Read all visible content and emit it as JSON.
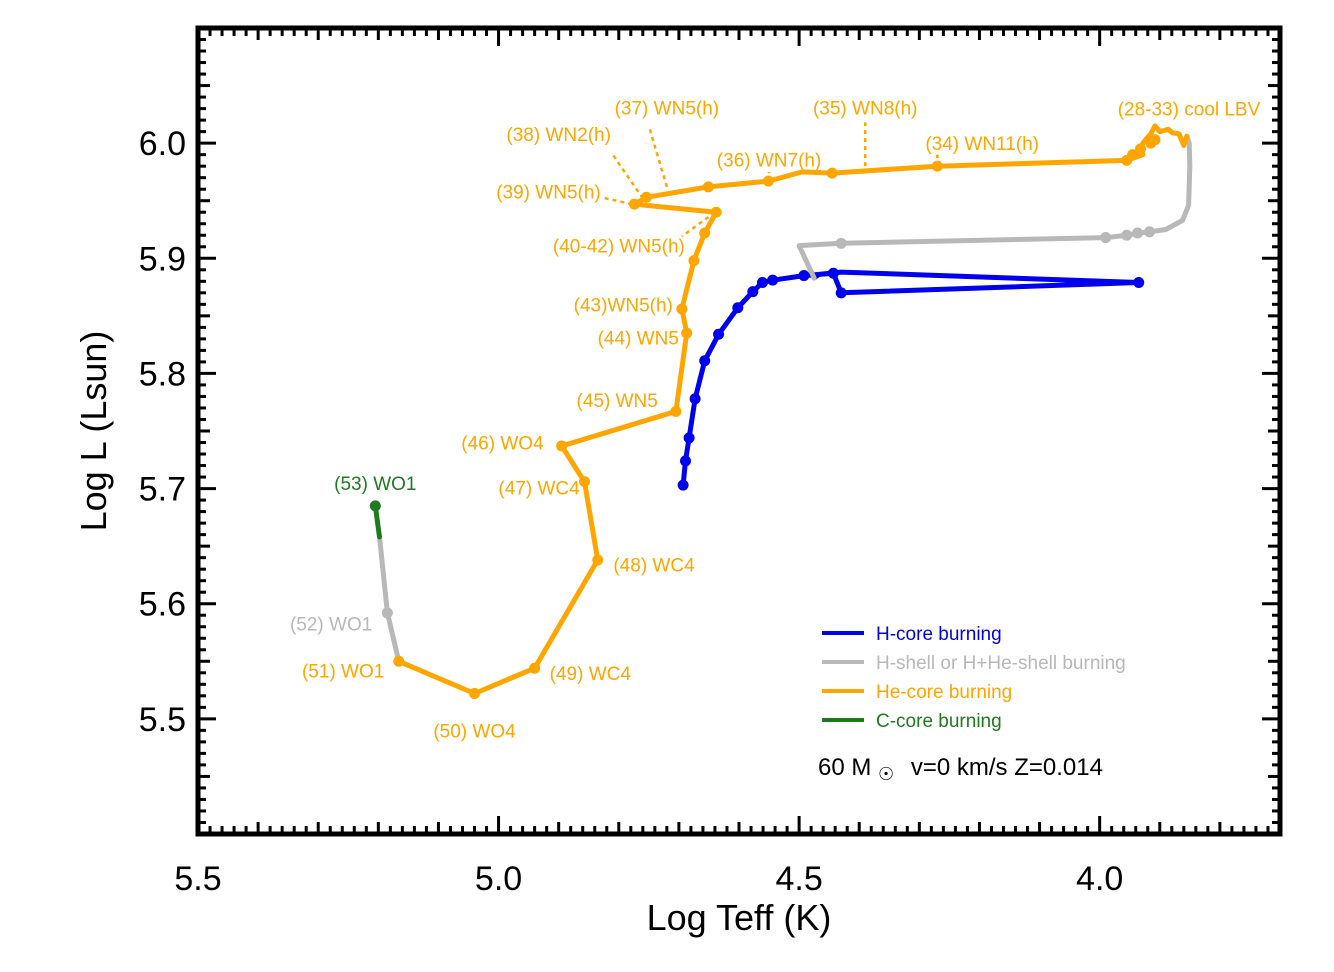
{
  "chart_data": {
    "type": "line",
    "xlabel": "Log Teff (K)",
    "ylabel": "Log L (Lsun)",
    "xlim": [
      5.5,
      3.7
    ],
    "ylim": [
      5.4,
      6.1
    ],
    "x_ticks": [
      "5.5",
      "5.0",
      "4.5",
      "4.0"
    ],
    "y_ticks": [
      "5.5",
      "5.6",
      "5.7",
      "5.8",
      "5.9",
      "6.0"
    ],
    "colors": {
      "h_core": "#0000ee",
      "h_shell": "#b8b8b8",
      "he_core": "#ffa500",
      "c_core": "#1e7a1e"
    },
    "series": [
      {
        "name": "H-core burning",
        "color_key": "h_core",
        "points": [
          [
            4.693,
            5.703
          ],
          [
            4.689,
            5.724
          ],
          [
            4.683,
            5.744
          ],
          [
            4.673,
            5.778
          ],
          [
            4.657,
            5.811
          ],
          [
            4.634,
            5.834
          ],
          [
            4.602,
            5.857
          ],
          [
            4.577,
            5.871
          ],
          [
            4.561,
            5.879
          ],
          [
            4.544,
            5.881
          ],
          [
            4.492,
            5.885
          ],
          [
            4.443,
            5.887
          ],
          [
            4.43,
            5.87
          ],
          [
            3.935,
            5.879
          ],
          [
            4.43,
            5.888
          ],
          [
            4.467,
            5.886
          ],
          [
            4.475,
            5.883
          ]
        ]
      },
      {
        "name": "H-shell or H+He-shell burning",
        "color_key": "h_shell",
        "points": [
          [
            4.475,
            5.883
          ],
          [
            4.5,
            5.911
          ],
          [
            4.43,
            5.913
          ],
          [
            3.99,
            5.918
          ],
          [
            3.955,
            5.92
          ],
          [
            3.937,
            5.922
          ],
          [
            3.917,
            5.923
          ],
          [
            3.89,
            5.925
          ],
          [
            3.862,
            5.933
          ],
          [
            3.852,
            5.946
          ],
          [
            3.85,
            5.98
          ],
          [
            3.851,
            6.0
          ],
          [
            3.855,
            6.006
          ]
        ]
      },
      {
        "name": "He-core burning",
        "color_key": "he_core",
        "points": [
          [
            3.855,
            6.006
          ],
          [
            3.86,
            5.998
          ],
          [
            3.868,
            6.008
          ],
          [
            3.879,
            6.009
          ],
          [
            3.886,
            6.012
          ],
          [
            3.9,
            6.01
          ],
          [
            3.908,
            6.015
          ],
          [
            3.915,
            6.008
          ],
          [
            3.922,
            6.004
          ],
          [
            3.928,
            6.0
          ],
          [
            3.932,
            5.995
          ],
          [
            3.928,
            5.99
          ],
          [
            3.955,
            5.985
          ],
          [
            4.27,
            5.98
          ],
          [
            4.445,
            5.974
          ],
          [
            4.495,
            5.975
          ],
          [
            4.551,
            5.967
          ],
          [
            4.651,
            5.962
          ],
          [
            4.754,
            5.953
          ],
          [
            4.774,
            5.947
          ],
          [
            4.638,
            5.94
          ],
          [
            4.657,
            5.922
          ],
          [
            4.675,
            5.898
          ],
          [
            4.695,
            5.856
          ],
          [
            4.687,
            5.835
          ],
          [
            4.705,
            5.767
          ],
          [
            4.895,
            5.737
          ],
          [
            4.857,
            5.706
          ],
          [
            4.835,
            5.638
          ],
          [
            4.94,
            5.544
          ],
          [
            5.04,
            5.522
          ],
          [
            5.166,
            5.55
          ]
        ]
      },
      {
        "name": "H-shell or H+He-shell burning",
        "color_key": "h_shell",
        "points": [
          [
            5.166,
            5.55
          ],
          [
            5.185,
            5.592
          ],
          [
            5.198,
            5.658
          ]
        ]
      },
      {
        "name": "C-core burning",
        "color_key": "c_core",
        "points": [
          [
            5.198,
            5.658
          ],
          [
            5.205,
            5.685
          ]
        ]
      }
    ],
    "markers": [
      {
        "color_key": "h_core",
        "points": [
          [
            4.693,
            5.703
          ],
          [
            4.689,
            5.724
          ],
          [
            4.683,
            5.744
          ],
          [
            4.673,
            5.778
          ],
          [
            4.657,
            5.811
          ],
          [
            4.634,
            5.834
          ],
          [
            4.602,
            5.857
          ],
          [
            4.577,
            5.871
          ],
          [
            4.561,
            5.879
          ],
          [
            4.544,
            5.881
          ],
          [
            4.492,
            5.885
          ],
          [
            4.443,
            5.887
          ],
          [
            4.43,
            5.87
          ],
          [
            3.935,
            5.879
          ]
        ]
      },
      {
        "color_key": "h_shell",
        "points": [
          [
            4.43,
            5.913
          ],
          [
            3.99,
            5.918
          ],
          [
            3.955,
            5.92
          ],
          [
            3.937,
            5.922
          ],
          [
            3.917,
            5.923
          ],
          [
            5.185,
            5.592
          ]
        ]
      },
      {
        "color_key": "he_core",
        "points": [
          [
            3.955,
            5.985
          ],
          [
            3.945,
            5.99
          ],
          [
            3.932,
            5.995
          ],
          [
            3.915,
            6.0
          ],
          [
            3.908,
            6.003
          ],
          [
            4.27,
            5.98
          ],
          [
            4.445,
            5.974
          ],
          [
            4.551,
            5.967
          ],
          [
            4.651,
            5.962
          ],
          [
            4.754,
            5.953
          ],
          [
            4.774,
            5.947
          ],
          [
            4.638,
            5.94
          ],
          [
            4.657,
            5.922
          ],
          [
            4.675,
            5.898
          ],
          [
            4.695,
            5.856
          ],
          [
            4.687,
            5.835
          ],
          [
            4.705,
            5.767
          ],
          [
            4.895,
            5.737
          ],
          [
            4.857,
            5.706
          ],
          [
            4.835,
            5.638
          ],
          [
            4.94,
            5.544
          ],
          [
            5.04,
            5.522
          ],
          [
            5.166,
            5.55
          ]
        ]
      },
      {
        "color_key": "c_core",
        "points": [
          [
            5.205,
            5.685
          ]
        ]
      }
    ],
    "annotations": [
      {
        "text": "(28-33) cool LBV",
        "color_key": "he_core",
        "x": 3.97,
        "y": 6.03,
        "anchor": "start"
      },
      {
        "text": "(34) WN11(h)",
        "color_key": "he_core",
        "x": 4.29,
        "y": 6.0,
        "anchor": "start"
      },
      {
        "text": "(35) WN8(h)",
        "color_key": "he_core",
        "x": 4.39,
        "y": 6.031,
        "anchor": "middle"
      },
      {
        "text": "(36) WN7(h)",
        "color_key": "he_core",
        "x": 4.55,
        "y": 5.986,
        "anchor": "middle"
      },
      {
        "text": "(37) WN5(h)",
        "color_key": "he_core",
        "x": 4.72,
        "y": 6.031,
        "anchor": "middle"
      },
      {
        "text": "(38) WN2(h)",
        "color_key": "he_core",
        "x": 4.9,
        "y": 6.008,
        "anchor": "middle"
      },
      {
        "text": "(39) WN5(h)",
        "color_key": "he_core",
        "x": 4.83,
        "y": 5.958,
        "anchor": "end"
      },
      {
        "text": "(40-42) WN5(h)",
        "color_key": "he_core",
        "x": 4.69,
        "y": 5.911,
        "anchor": "end"
      },
      {
        "text": "(43)WN5(h)",
        "color_key": "he_core",
        "x": 4.71,
        "y": 5.86,
        "anchor": "end"
      },
      {
        "text": "(44) WN5",
        "color_key": "he_core",
        "x": 4.7,
        "y": 5.831,
        "anchor": "end"
      },
      {
        "text": "(45) WN5",
        "color_key": "he_core",
        "x": 4.735,
        "y": 5.777,
        "anchor": "end"
      },
      {
        "text": "(46) WO4",
        "color_key": "he_core",
        "x": 4.925,
        "y": 5.74,
        "anchor": "end"
      },
      {
        "text": "(47) WC4",
        "color_key": "he_core",
        "x": 4.865,
        "y": 5.701,
        "anchor": "end"
      },
      {
        "text": "(48) WC4",
        "color_key": "he_core",
        "x": 4.809,
        "y": 5.634,
        "anchor": "start"
      },
      {
        "text": "(49) WC4",
        "color_key": "he_core",
        "x": 4.915,
        "y": 5.54,
        "anchor": "start"
      },
      {
        "text": "(50) WO4",
        "color_key": "he_core",
        "x": 5.04,
        "y": 5.49,
        "anchor": "middle"
      },
      {
        "text": "(51) WO1",
        "color_key": "he_core",
        "x": 5.19,
        "y": 5.542,
        "anchor": "end"
      },
      {
        "text": "(52) WO1",
        "color_key": "h_shell",
        "x": 5.21,
        "y": 5.583,
        "anchor": "end"
      },
      {
        "text": "(53) WO1",
        "color_key": "c_core",
        "x": 5.205,
        "y": 5.705,
        "anchor": "middle"
      }
    ],
    "legend": {
      "position": "bottom-right",
      "entries": [
        {
          "label": "H-core burning",
          "color_key": "h_core"
        },
        {
          "label": "H-shell or H+He-shell burning",
          "color_key": "h_shell"
        },
        {
          "label": "He-core burning",
          "color_key": "he_core"
        },
        {
          "label": "C-core burning",
          "color_key": "c_core"
        }
      ]
    },
    "model_label": {
      "mass": "60 M",
      "sun_symbol": "☉",
      "params": "v=0 km/s Z=0.014"
    }
  }
}
